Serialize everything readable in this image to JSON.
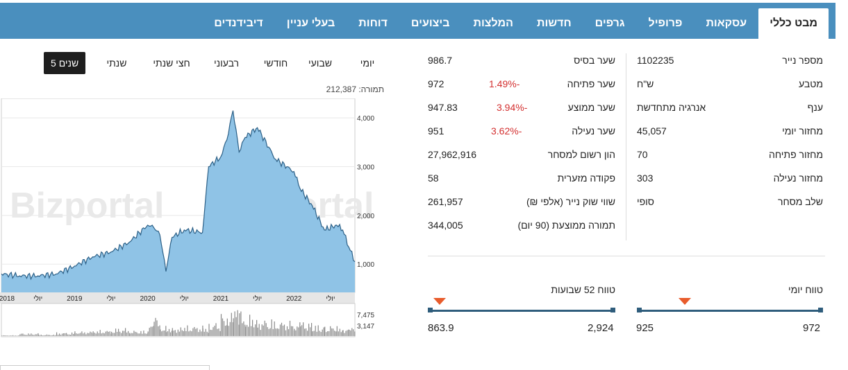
{
  "tabs": [
    "מבט כללי",
    "עסקאות",
    "פרופיל",
    "גרפים",
    "חדשות",
    "המלצות",
    "ביצועים",
    "דוחות",
    "בעלי עניין",
    "דיבידנדים"
  ],
  "periods": [
    "יומי",
    "שבועי",
    "חודשי",
    "רבעוני",
    "חצי שנתי",
    "שנתי",
    "5 שנים"
  ],
  "active_period": "5 שנים",
  "volume_label": "תמורה: 212,387",
  "chart_data": {
    "type": "area",
    "watermark": "Bizportal",
    "x_tick_labels": [
      "2018",
      "יולי",
      "2019",
      "יולי",
      "2020",
      "יולי",
      "2021",
      "יולי",
      "2022",
      "יולי"
    ],
    "y_tick_labels": [
      "4,000",
      "3,000",
      "2,000",
      "1,000"
    ],
    "ylim": [
      420,
      4400
    ],
    "x": [
      "2018-01",
      "2018-04",
      "2018-07",
      "2018-10",
      "2019-01",
      "2019-04",
      "2019-07",
      "2019-10",
      "2020-01",
      "2020-02",
      "2020-03",
      "2020-04",
      "2020-05",
      "2020-07",
      "2020-10",
      "2020-11",
      "2021-01",
      "2021-02",
      "2021-03",
      "2021-04",
      "2021-05",
      "2021-07",
      "2021-10",
      "2022-01",
      "2022-02",
      "2022-04",
      "2022-06",
      "2022-08",
      "2022-09",
      "2022-10",
      "2022-11"
    ],
    "values": [
      800,
      760,
      760,
      800,
      960,
      1150,
      1250,
      1450,
      1800,
      1750,
      1600,
      850,
      1550,
      1700,
      1650,
      3000,
      3200,
      3550,
      4150,
      3300,
      3600,
      3800,
      3150,
      2900,
      2550,
      2200,
      1700,
      1800,
      1700,
      1350,
      1050
    ],
    "volume_tick_labels": [
      "7,475",
      "3,147"
    ],
    "volume": [
      200,
      700,
      400,
      900,
      1200,
      1500,
      2000,
      1400,
      3000,
      5200,
      2500,
      1800,
      2200,
      2600,
      2000,
      3400,
      5800,
      6500,
      7200,
      7400,
      5200,
      4200,
      3800,
      3400,
      3600,
      2800,
      2600,
      2400,
      2000,
      2200,
      1800
    ]
  },
  "middle": [
    {
      "label": "שער בסיס",
      "value": "986.7",
      "change": ""
    },
    {
      "label": "שער פתיחה",
      "value": "972",
      "change": "1.49%-"
    },
    {
      "label": "שער ממוצע",
      "value": "947.83",
      "change": "3.94%-"
    },
    {
      "label": "שער נעילה",
      "value": "951",
      "change": "3.62%-"
    },
    {
      "label": "הון רשום למסחר",
      "value": "27,962,916",
      "change": ""
    },
    {
      "label": "פקודה מזערית",
      "value": "58",
      "change": ""
    },
    {
      "label": "שווי שוק נייר (אלפי ₪)",
      "value": "261,957",
      "change": ""
    },
    {
      "label": "תמורה ממוצעת (90 יום)",
      "value": "344,005",
      "change": ""
    }
  ],
  "right": [
    {
      "label": "מספר נייר",
      "value": "1102235"
    },
    {
      "label": "מטבע",
      "value": "ש\"ח"
    },
    {
      "label": "ענף",
      "value": "אנרגיה מתחדשת"
    },
    {
      "label": "מחזור יומי",
      "value": "45,057"
    },
    {
      "label": "מחזור פתיחה",
      "value": "70"
    },
    {
      "label": "מחזור נעילה",
      "value": "303"
    },
    {
      "label": "שלב מסחר",
      "value": "סופי"
    }
  ],
  "range_daily": {
    "title": "טווח יומי",
    "low": "925",
    "high": "972",
    "marker_fraction": 0.5
  },
  "range_52w": {
    "title": "טווח 52 שבועות",
    "low": "863.9",
    "high": "2,924",
    "marker_fraction": 0.05
  },
  "colors": {
    "tab_bar": "#4a8fbe",
    "negative": "#d32f2f",
    "area_fill": "#8fc3e6",
    "area_line": "#2b5f86",
    "marker": "#e85c2c",
    "range_bar": "#2f5d7c"
  }
}
